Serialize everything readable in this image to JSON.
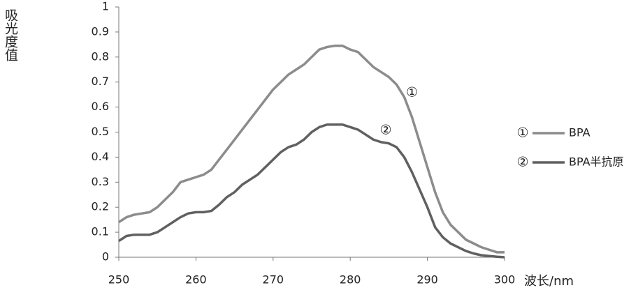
{
  "chart_data": {
    "type": "line",
    "y_label": "吸光度值",
    "x_label": "波长/nm",
    "x": [
      250,
      251,
      252,
      253,
      254,
      255,
      256,
      257,
      258,
      259,
      260,
      261,
      262,
      263,
      264,
      265,
      266,
      267,
      268,
      269,
      270,
      271,
      272,
      273,
      274,
      275,
      276,
      277,
      278,
      279,
      280,
      281,
      282,
      283,
      284,
      285,
      286,
      287,
      288,
      289,
      290,
      291,
      292,
      293,
      294,
      295,
      296,
      297,
      298,
      299,
      300
    ],
    "series": [
      {
        "name": "BPA",
        "color": "#8c8c8c",
        "values": [
          0.14,
          0.16,
          0.17,
          0.175,
          0.18,
          0.2,
          0.23,
          0.26,
          0.3,
          0.31,
          0.32,
          0.33,
          0.35,
          0.39,
          0.43,
          0.47,
          0.51,
          0.55,
          0.59,
          0.63,
          0.67,
          0.7,
          0.73,
          0.75,
          0.77,
          0.8,
          0.83,
          0.84,
          0.845,
          0.845,
          0.83,
          0.82,
          0.79,
          0.76,
          0.74,
          0.72,
          0.69,
          0.64,
          0.56,
          0.46,
          0.36,
          0.26,
          0.18,
          0.13,
          0.1,
          0.07,
          0.055,
          0.04,
          0.03,
          0.02,
          0.02
        ]
      },
      {
        "name": "BPA半抗原",
        "color": "#606060",
        "values": [
          0.065,
          0.085,
          0.09,
          0.09,
          0.09,
          0.1,
          0.12,
          0.14,
          0.16,
          0.175,
          0.18,
          0.18,
          0.185,
          0.21,
          0.24,
          0.26,
          0.29,
          0.31,
          0.33,
          0.36,
          0.39,
          0.42,
          0.44,
          0.45,
          0.47,
          0.5,
          0.52,
          0.53,
          0.53,
          0.53,
          0.52,
          0.51,
          0.49,
          0.47,
          0.46,
          0.455,
          0.44,
          0.4,
          0.34,
          0.27,
          0.2,
          0.12,
          0.08,
          0.055,
          0.04,
          0.025,
          0.015,
          0.008,
          0.005,
          0.002,
          0
        ]
      }
    ],
    "annotations": [
      {
        "text": "①",
        "x": 288,
        "y": 0.657
      },
      {
        "text": "②",
        "x": 284.6,
        "y": 0.507
      }
    ],
    "xlim": [
      250,
      300
    ],
    "xticks": [
      250,
      260,
      270,
      280,
      290,
      300
    ],
    "ylim": [
      0,
      1
    ],
    "yticks": [
      0,
      0.1,
      0.2,
      0.3,
      0.4,
      0.5,
      0.6,
      0.7,
      0.8,
      0.9,
      1
    ],
    "grid": false,
    "legend": "right"
  }
}
